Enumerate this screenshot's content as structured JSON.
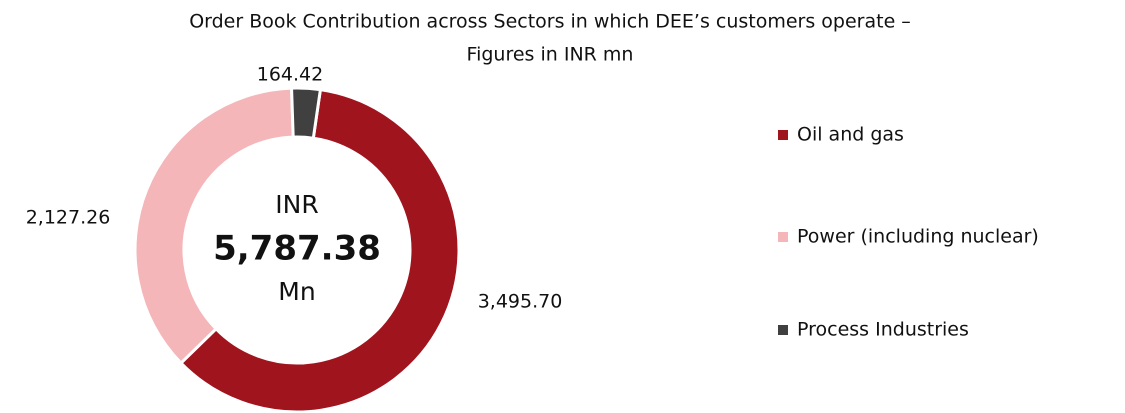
{
  "chart_data": {
    "type": "donut",
    "title": [
      "Order Book Contribution across Sectors in which DEE’s customers operate –",
      "Figures in INR mn"
    ],
    "categories": [
      "Oil and gas",
      "Power (including nuclear)",
      "Process Industries"
    ],
    "values": [
      3495.7,
      2127.26,
      164.42
    ],
    "value_labels": [
      "3,495.70",
      "2,127.26",
      "164.42"
    ],
    "colors": [
      "#a0141e",
      "#f4b6b8",
      "#404040"
    ],
    "center_text": [
      "INR",
      "5,787.38",
      "Mn"
    ],
    "legend": "right"
  }
}
